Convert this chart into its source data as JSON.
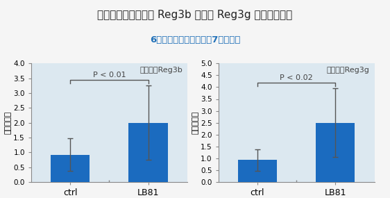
{
  "title": "若齢マウスにおける Reg3b および Reg3g 発現促進効果",
  "subtitle": "6ヶ月齢マウスに対する7週間投与",
  "subtitle_color": "#2070b8",
  "title_color": "#222222",
  "background_color": "#dce8f0",
  "fig_background": "#f5f5f5",
  "bar_color": "#1b6bbf",
  "ylabel": "相対発現量",
  "categories": [
    "ctrl",
    "LB81"
  ],
  "panel1": {
    "title": "遠位回腸Reg3b",
    "pvalue": "P < 0.01",
    "values": [
      0.92,
      2.0
    ],
    "errors": [
      0.55,
      1.25
    ],
    "ylim": [
      0,
      4.0
    ],
    "yticks": [
      0.0,
      0.5,
      1.0,
      1.5,
      2.0,
      2.5,
      3.0,
      3.5,
      4.0
    ]
  },
  "panel2": {
    "title": "遠位回腸Reg3g",
    "pvalue": "P < 0.02",
    "values": [
      0.93,
      2.5
    ],
    "errors": [
      0.45,
      1.45
    ],
    "ylim": [
      0,
      5.0
    ],
    "yticks": [
      0.0,
      0.5,
      1.0,
      1.5,
      2.0,
      2.5,
      3.0,
      3.5,
      4.0,
      4.5,
      5.0
    ]
  }
}
